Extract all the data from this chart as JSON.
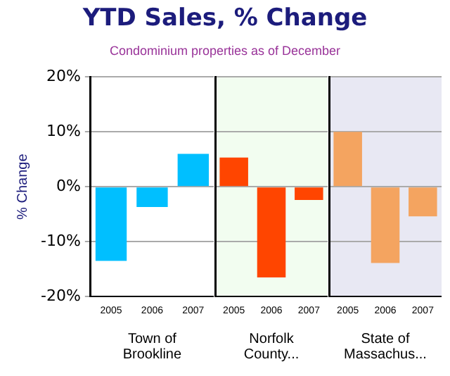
{
  "chart_data": [
    {
      "type": "bar",
      "title": "YTD Sales, % Change",
      "subtitle": "Condominium properties as of December",
      "ylabel": "% Change",
      "xlabel": "Town of Brookline",
      "categories": [
        "2005",
        "2006",
        "2007"
      ],
      "values": [
        -13.5,
        -3.7,
        6.0
      ],
      "color": "#00bfff",
      "ylim": [
        -20,
        20
      ],
      "yticks": [
        {
          "value": -20,
          "label": "-20%"
        },
        {
          "value": -10,
          "label": "-10%"
        },
        {
          "value": 0,
          "label": "0%"
        },
        {
          "value": 10,
          "label": "10%"
        },
        {
          "value": 20,
          "label": "20%"
        }
      ],
      "grid": "y"
    },
    {
      "type": "bar",
      "xlabel": "Norfolk County...",
      "categories": [
        "2005",
        "2006",
        "2007"
      ],
      "values": [
        5.3,
        -16.5,
        -2.4
      ],
      "color": "#ff4500",
      "ylim": [
        -20,
        20
      ],
      "grid": "y",
      "tick_labels": "x"
    },
    {
      "type": "bar",
      "xlabel": "State of Massachus...",
      "categories": [
        "2005",
        "2006",
        "2007"
      ],
      "values": [
        10.0,
        -13.9,
        -5.4
      ],
      "color": "#f4a460",
      "ylim": [
        -20,
        20
      ],
      "grid": "y",
      "tick_labels": "x"
    }
  ]
}
